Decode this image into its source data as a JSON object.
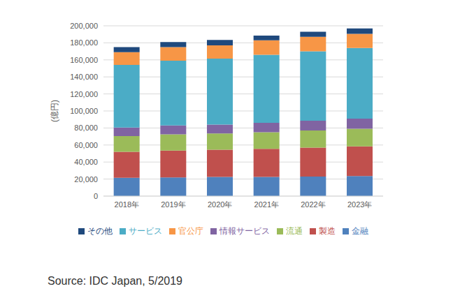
{
  "chart_data": {
    "type": "bar",
    "stacked": true,
    "y_label": "(億円)",
    "source": "Source: IDC Japan, 5/2019",
    "categories": [
      "2018年",
      "2019年",
      "2020年",
      "2021年",
      "2022年",
      "2023年"
    ],
    "series": [
      {
        "name": "金融",
        "color": "#4f81bd",
        "values": [
          21500,
          22000,
          22500,
          22500,
          23000,
          23500
        ]
      },
      {
        "name": "製造",
        "color": "#c0504d",
        "values": [
          30500,
          31500,
          32000,
          33000,
          34000,
          35000
        ]
      },
      {
        "name": "流通",
        "color": "#9bbb59",
        "values": [
          18500,
          19000,
          19000,
          19500,
          20000,
          20500
        ]
      },
      {
        "name": "情報サービス",
        "color": "#8064a2",
        "values": [
          10000,
          10500,
          10500,
          11000,
          11500,
          12000
        ]
      },
      {
        "name": "サービス",
        "color": "#4bacc6",
        "values": [
          73500,
          76000,
          77500,
          80000,
          81500,
          83000
        ]
      },
      {
        "name": "官公庁",
        "color": "#f79646",
        "values": [
          15000,
          16000,
          15500,
          17000,
          17000,
          16500
        ]
      },
      {
        "name": "その他",
        "color": "#1f497d",
        "values": [
          6000,
          6000,
          6500,
          5500,
          6000,
          6500
        ]
      }
    ],
    "ylim": [
      0,
      200000
    ],
    "yticks": [
      0,
      {
        "value": 20000,
        "label": "20,000"
      },
      {
        "value": 40000,
        "label": "40,000"
      },
      {
        "value": 60000,
        "label": "60,000"
      },
      {
        "value": 80000,
        "label": "80,000"
      },
      {
        "value": 100000,
        "label": "100,000"
      },
      {
        "value": 120000,
        "label": "120,000"
      },
      {
        "value": 140000,
        "label": "140,000"
      },
      {
        "value": 160000,
        "label": "160,000"
      },
      {
        "value": 180000,
        "label": "180,000"
      },
      {
        "value": 200000,
        "label": "200,000"
      }
    ],
    "grid": true,
    "legend": "bottom"
  }
}
